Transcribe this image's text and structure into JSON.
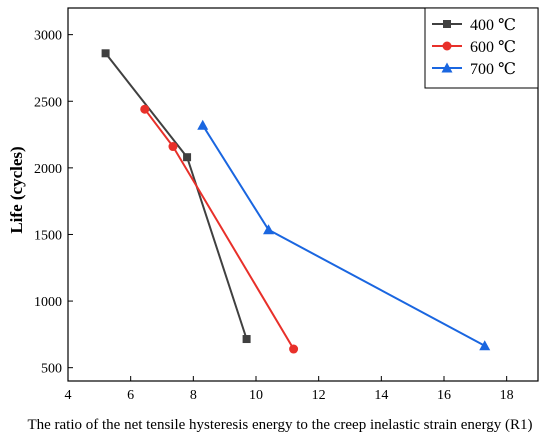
{
  "chart_data": {
    "type": "line",
    "xlabel": "The ratio of the net tensile hysteresis energy to the creep inelastic strain energy (R1)",
    "ylabel": "Life (cycles)",
    "xlim": [
      4,
      19
    ],
    "ylim": [
      400,
      3200
    ],
    "xticks": [
      "4",
      "6",
      "8",
      "10",
      "12",
      "14",
      "16",
      "18"
    ],
    "yticks": [
      "500",
      "1000",
      "1500",
      "2000",
      "2500",
      "3000"
    ],
    "legend_position": "top-right",
    "grid": false,
    "series": [
      {
        "name": "400 ℃",
        "color": "#404040",
        "marker": "square",
        "points": [
          [
            5.2,
            2860
          ],
          [
            7.8,
            2080
          ],
          [
            9.7,
            715
          ]
        ]
      },
      {
        "name": "600 ℃",
        "color": "#e8302a",
        "marker": "circle",
        "points": [
          [
            6.45,
            2440
          ],
          [
            7.35,
            2160
          ],
          [
            11.2,
            640
          ]
        ]
      },
      {
        "name": "700 ℃",
        "color": "#1a66e0",
        "marker": "triangle",
        "points": [
          [
            8.3,
            2320
          ],
          [
            10.4,
            1535
          ],
          [
            17.3,
            665
          ]
        ]
      }
    ]
  }
}
